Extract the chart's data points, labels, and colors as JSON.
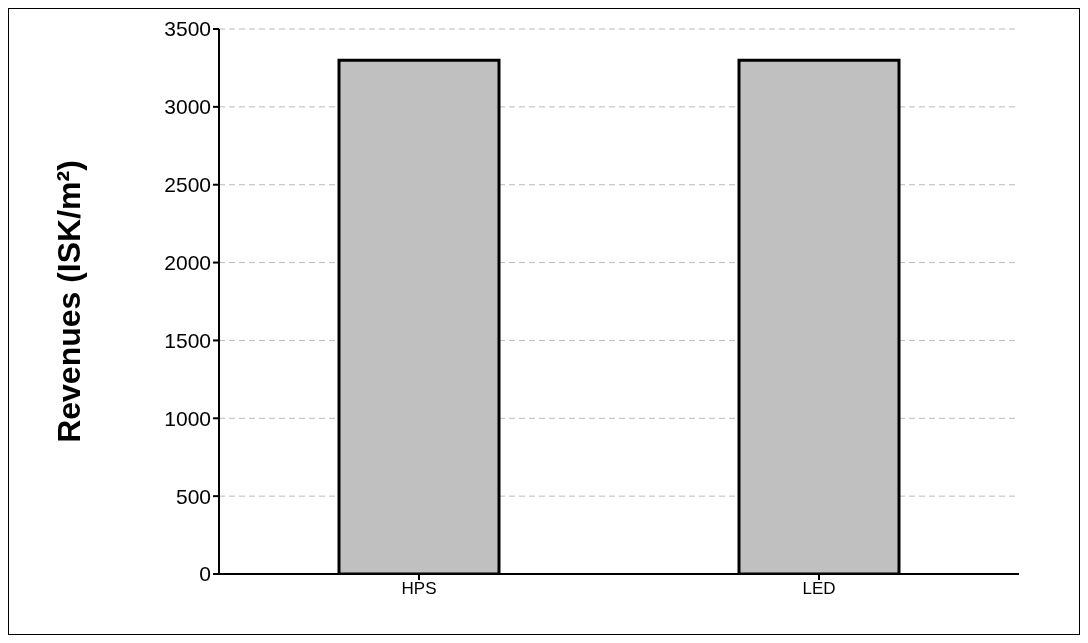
{
  "chart_data": {
    "type": "bar",
    "ylabel": "Revenues (ISK/m²)",
    "categories": [
      "HPS",
      "LED"
    ],
    "values": [
      3300,
      3300
    ],
    "color": "#c0c0c0",
    "ylim": [
      0,
      3500
    ],
    "yticks": [
      0,
      500,
      1000,
      1500,
      2000,
      2500,
      3000,
      3500
    ],
    "grid": "y"
  }
}
